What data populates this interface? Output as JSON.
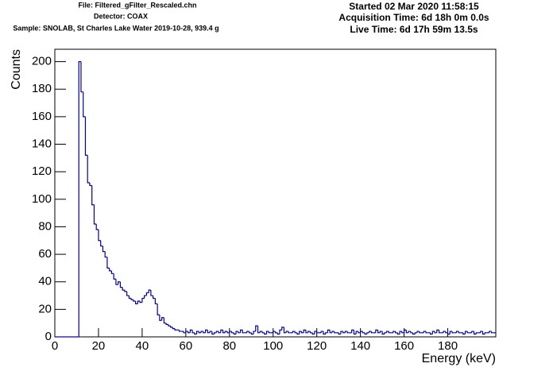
{
  "chart_data": {
    "type": "histogram",
    "header_left": [
      "File: Filtered_gFilter_Rescaled.chn",
      "Detector: COAX",
      "Sample: SNOLAB, St Charles Lake Water 2019-10-28, 939.4 g"
    ],
    "header_right": [
      "Started 02 Mar 2020 11:58:15",
      "Acquisition Time: 6d 18h 0m 0.0s",
      "Live Time: 6d 17h 59m 13.5s"
    ],
    "x_label": "Energy (keV)",
    "y_label": "Counts",
    "color": "#000099",
    "xlim": [
      0,
      202
    ],
    "ylim": [
      0,
      209
    ],
    "xticks": [
      0,
      20,
      40,
      60,
      80,
      100,
      120,
      140,
      160,
      180
    ],
    "yticks": [
      0,
      20,
      40,
      60,
      80,
      100,
      120,
      140,
      160,
      180,
      200
    ],
    "grid": false,
    "bins": [
      0,
      1,
      2,
      3,
      4,
      5,
      6,
      7,
      8,
      9,
      10,
      11,
      12,
      13,
      14,
      15,
      16,
      17,
      18,
      19,
      20,
      21,
      22,
      23,
      24,
      25,
      26,
      27,
      28,
      29,
      30,
      31,
      32,
      33,
      34,
      35,
      36,
      37,
      38,
      39,
      40,
      41,
      42,
      43,
      44,
      45,
      46,
      47,
      48,
      49,
      50,
      51,
      52,
      53,
      54,
      55,
      56,
      57,
      58,
      59,
      60,
      61,
      62,
      63,
      64,
      65,
      66,
      67,
      68,
      69,
      70,
      71,
      72,
      73,
      74,
      75,
      76,
      77,
      78,
      79,
      80,
      81,
      82,
      83,
      84,
      85,
      86,
      87,
      88,
      89,
      90,
      91,
      92,
      93,
      94,
      95,
      96,
      97,
      98,
      99,
      100,
      101,
      102,
      103,
      104,
      105,
      106,
      107,
      108,
      109,
      110,
      111,
      112,
      113,
      114,
      115,
      116,
      117,
      118,
      119,
      120,
      121,
      122,
      123,
      124,
      125,
      126,
      127,
      128,
      129,
      130,
      131,
      132,
      133,
      134,
      135,
      136,
      137,
      138,
      139,
      140,
      141,
      142,
      143,
      144,
      145,
      146,
      147,
      148,
      149,
      150,
      151,
      152,
      153,
      154,
      155,
      156,
      157,
      158,
      159,
      160,
      161,
      162,
      163,
      164,
      165,
      166,
      167,
      168,
      169,
      170,
      171,
      172,
      173,
      174,
      175,
      176,
      177,
      178,
      179,
      180,
      181,
      182,
      183,
      184,
      185,
      186,
      187,
      188,
      189,
      190,
      191,
      192,
      193,
      194,
      195,
      196,
      197,
      198,
      199,
      200,
      201,
      202
    ],
    "values": [
      0,
      0,
      0,
      0,
      0,
      0,
      0,
      0,
      0,
      0,
      0,
      200,
      178,
      160,
      132,
      112,
      110,
      96,
      82,
      78,
      70,
      66,
      62,
      58,
      50,
      48,
      46,
      42,
      38,
      40,
      36,
      34,
      33,
      30,
      28,
      27,
      26,
      24,
      26,
      25,
      28,
      30,
      32,
      34,
      30,
      28,
      24,
      16,
      12,
      14,
      10,
      9,
      8,
      7,
      6,
      5,
      5,
      4,
      4,
      3,
      4,
      3,
      5,
      3,
      2,
      4,
      3,
      4,
      3,
      5,
      3,
      4,
      2,
      3,
      4,
      3,
      5,
      3,
      4,
      3,
      4,
      3,
      2,
      4,
      3,
      5,
      3,
      3,
      4,
      3,
      2,
      4,
      8,
      3,
      4,
      3,
      2,
      4,
      3,
      3,
      4,
      3,
      2,
      5,
      7,
      3,
      4,
      3,
      3,
      4,
      3,
      2,
      4,
      3,
      5,
      3,
      4,
      3,
      2,
      4,
      3,
      3,
      4,
      2,
      3,
      5,
      3,
      4,
      3,
      3,
      2,
      4,
      3,
      4,
      3,
      3,
      5,
      2,
      4,
      3,
      4,
      3,
      2,
      3,
      4,
      3,
      3,
      5,
      3,
      4,
      2,
      3,
      4,
      3,
      3,
      4,
      3,
      2,
      4,
      3,
      5,
      3,
      4,
      3,
      2,
      3,
      4,
      3,
      3,
      4,
      3,
      3,
      2,
      4,
      3,
      5,
      3,
      3,
      4,
      3,
      2,
      4,
      3,
      3,
      4,
      3,
      3,
      2,
      4,
      3,
      3,
      4,
      2,
      3,
      3,
      4,
      2,
      3,
      3,
      4,
      3,
      3
    ]
  }
}
